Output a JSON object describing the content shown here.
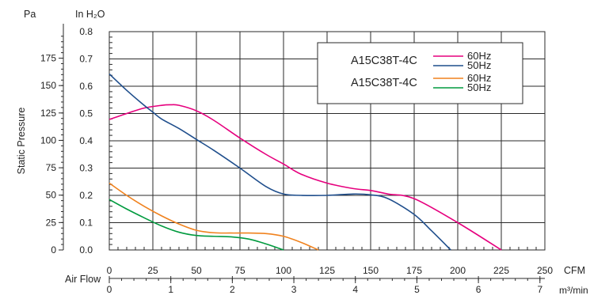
{
  "chart_data": {
    "type": "line",
    "title": "",
    "left_unit_label": "Pa",
    "right_unit_label": "In H₂O",
    "ylabel": "Static Pressure",
    "xlabel": "Air Flow",
    "x_unit_cfm": "CFM",
    "x_unit_m3": "m³/min",
    "x_cfm": {
      "range": [
        0,
        250
      ],
      "ticks": [
        "0",
        "25",
        "50",
        "75",
        "100",
        "125",
        "150",
        "175",
        "200",
        "225",
        "250"
      ]
    },
    "x_m3": {
      "range": [
        0,
        7.08
      ],
      "ticks": [
        "0",
        "1",
        "2",
        "3",
        "4",
        "5",
        "6",
        "7"
      ]
    },
    "y_inh2o": {
      "range": [
        0,
        0.8
      ],
      "ticks": [
        "0.0",
        "0.1",
        "0.2",
        "0.3",
        "0.4",
        "0.5",
        "0.6",
        "0.7",
        "0.8"
      ]
    },
    "y_pa": {
      "range": [
        0,
        199.2
      ],
      "ticks": [
        "0",
        "25",
        "50",
        "75",
        "100",
        "125",
        "150",
        "175"
      ]
    },
    "grid": true,
    "legend": {
      "position": "top-right",
      "groups": [
        {
          "model": "A15C38T-4C",
          "entries": [
            "60Hz",
            "50Hz"
          ]
        },
        {
          "model": "A15C38T-4C",
          "entries": [
            "60Hz",
            "50Hz"
          ]
        }
      ]
    },
    "series": [
      {
        "name": "60Hz",
        "color": "#e6007e",
        "x": [
          0,
          10,
          20,
          30,
          35,
          40,
          50,
          60,
          75,
          90,
          100,
          110,
          125,
          140,
          150,
          160,
          175,
          200,
          225
        ],
        "y": [
          0.478,
          0.5,
          0.52,
          0.53,
          0.532,
          0.53,
          0.51,
          0.475,
          0.41,
          0.35,
          0.315,
          0.278,
          0.245,
          0.225,
          0.218,
          0.205,
          0.188,
          0.1,
          0.0
        ]
      },
      {
        "name": "50Hz",
        "color": "#1f4e8c",
        "x": [
          0,
          10,
          20,
          25,
          30,
          40,
          50,
          60,
          75,
          90,
          100,
          110,
          125,
          140,
          150,
          160,
          175,
          185,
          196
        ],
        "y": [
          0.645,
          0.585,
          0.53,
          0.505,
          0.48,
          0.445,
          0.405,
          0.365,
          0.3,
          0.232,
          0.205,
          0.2,
          0.2,
          0.205,
          0.202,
          0.188,
          0.13,
          0.07,
          0.0
        ]
      },
      {
        "name": "60Hz",
        "color": "#f0821e",
        "x": [
          0,
          10,
          20,
          30,
          40,
          50,
          60,
          70,
          80,
          90,
          100,
          110,
          120
        ],
        "y": [
          0.245,
          0.2,
          0.16,
          0.125,
          0.095,
          0.072,
          0.063,
          0.062,
          0.062,
          0.06,
          0.05,
          0.028,
          0.0
        ]
      },
      {
        "name": "50Hz",
        "color": "#009a3e",
        "x": [
          0,
          10,
          20,
          30,
          40,
          50,
          60,
          70,
          80,
          90,
          100
        ],
        "y": [
          0.185,
          0.15,
          0.118,
          0.088,
          0.065,
          0.053,
          0.05,
          0.048,
          0.04,
          0.022,
          0.0
        ]
      }
    ]
  }
}
